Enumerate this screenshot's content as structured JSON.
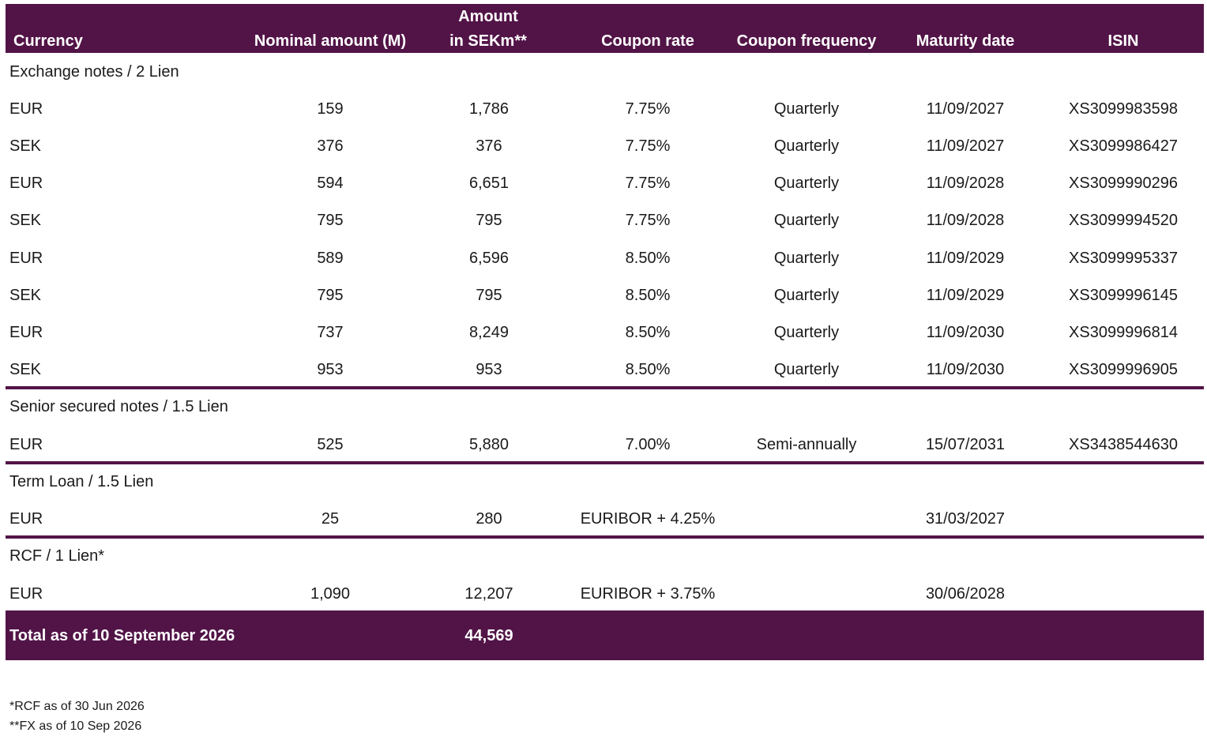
{
  "header": {
    "currency": "Currency",
    "nominal": "Nominal amount (M)",
    "amount_line1": "Amount",
    "amount_line2": "in SEKm**",
    "coupon_rate": "Coupon rate",
    "coupon_frequency": "Coupon frequency",
    "maturity": "Maturity date",
    "isin": "ISIN"
  },
  "sections": [
    {
      "title": "Exchange notes / 2 Lien",
      "rows": [
        {
          "currency": "EUR",
          "nominal": "159",
          "amount": "1,786",
          "rate": "7.75%",
          "frequency": "Quarterly",
          "maturity": "11/09/2027",
          "isin": "XS3099983598"
        },
        {
          "currency": "SEK",
          "nominal": "376",
          "amount": "376",
          "rate": "7.75%",
          "frequency": "Quarterly",
          "maturity": "11/09/2027",
          "isin": "XS3099986427"
        },
        {
          "currency": "EUR",
          "nominal": "594",
          "amount": "6,651",
          "rate": "7.75%",
          "frequency": "Quarterly",
          "maturity": "11/09/2028",
          "isin": "XS3099990296"
        },
        {
          "currency": "SEK",
          "nominal": "795",
          "amount": "795",
          "rate": "7.75%",
          "frequency": "Quarterly",
          "maturity": "11/09/2028",
          "isin": "XS3099994520"
        },
        {
          "currency": "EUR",
          "nominal": "589",
          "amount": "6,596",
          "rate": "8.50%",
          "frequency": "Quarterly",
          "maturity": "11/09/2029",
          "isin": "XS3099995337"
        },
        {
          "currency": "SEK",
          "nominal": "795",
          "amount": "795",
          "rate": "8.50%",
          "frequency": "Quarterly",
          "maturity": "11/09/2029",
          "isin": "XS3099996145"
        },
        {
          "currency": "EUR",
          "nominal": "737",
          "amount": "8,249",
          "rate": "8.50%",
          "frequency": "Quarterly",
          "maturity": "11/09/2030",
          "isin": "XS3099996814"
        },
        {
          "currency": "SEK",
          "nominal": "953",
          "amount": "953",
          "rate": "8.50%",
          "frequency": "Quarterly",
          "maturity": "11/09/2030",
          "isin": "XS3099996905"
        }
      ]
    },
    {
      "title": "Senior secured notes / 1.5 Lien",
      "rows": [
        {
          "currency": "EUR",
          "nominal": "525",
          "amount": "5,880",
          "rate": "7.00%",
          "frequency": "Semi-annually",
          "maturity": "15/07/2031",
          "isin": "XS3438544630"
        }
      ]
    },
    {
      "title": "Term Loan / 1.5 Lien",
      "rows": [
        {
          "currency": "EUR",
          "nominal": "25",
          "amount": "280",
          "rate": "EURIBOR + 4.25%",
          "frequency": "",
          "maturity": "31/03/2027",
          "isin": ""
        }
      ]
    },
    {
      "title": "RCF / 1 Lien*",
      "rows": [
        {
          "currency": "EUR",
          "nominal": "1,090",
          "amount": "12,207",
          "rate": "EURIBOR + 3.75%",
          "frequency": "",
          "maturity": "30/06/2028",
          "isin": ""
        }
      ]
    }
  ],
  "total": {
    "label": "Total as of 10 September 2026",
    "amount": "44,569"
  },
  "footnotes": [
    "*RCF as of 30 Jun 2026",
    "**FX as of 10 Sep 2026"
  ],
  "colors": {
    "accent": "#521447"
  }
}
